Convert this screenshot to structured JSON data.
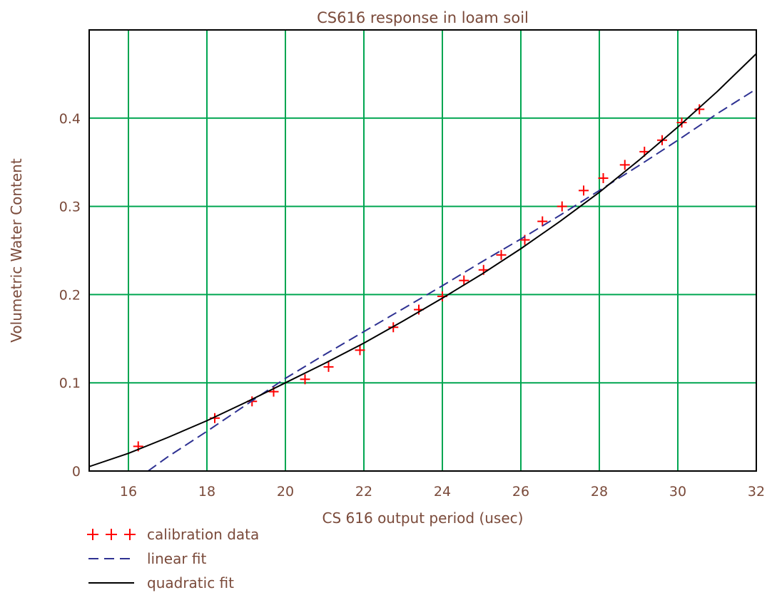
{
  "chart_data": {
    "type": "line",
    "title": "CS616 response in loam soil",
    "xlabel": "CS 616 output period (usec)",
    "ylabel": "Volumetric Water Content",
    "xlim": [
      15,
      32
    ],
    "ylim": [
      0,
      0.5
    ],
    "x_ticks": [
      "16",
      "18",
      "20",
      "22",
      "24",
      "26",
      "28",
      "30",
      "32"
    ],
    "y_ticks": [
      "0",
      "0.1",
      "0.2",
      "0.3",
      "0.4"
    ],
    "grid": true,
    "legend_position": "below-left",
    "colors": {
      "grid": "#00a651",
      "calibration": "#ff0000",
      "linear": "#2e3192",
      "quadratic": "#000000",
      "text": "#7a4a3a"
    },
    "series": [
      {
        "name": "calibration data",
        "style": "markers-plus",
        "x": [
          16.25,
          18.2,
          19.15,
          19.7,
          20.5,
          21.1,
          21.9,
          22.75,
          23.4,
          24.0,
          24.55,
          25.05,
          25.5,
          26.1,
          26.55,
          27.05,
          27.6,
          28.1,
          28.65,
          29.15,
          29.6,
          30.1,
          30.55
        ],
        "y": [
          0.028,
          0.06,
          0.079,
          0.09,
          0.104,
          0.118,
          0.137,
          0.163,
          0.183,
          0.198,
          0.216,
          0.228,
          0.245,
          0.262,
          0.283,
          0.3,
          0.318,
          0.332,
          0.347,
          0.362,
          0.375,
          0.395,
          0.41
        ]
      },
      {
        "name": "linear fit",
        "style": "dashed",
        "x": [
          16.5,
          17,
          18,
          19,
          20,
          21,
          22,
          23,
          24,
          25,
          26,
          27,
          28,
          29,
          30,
          31,
          32
        ],
        "y": [
          0.0,
          0.016,
          0.045,
          0.075,
          0.105,
          0.132,
          0.158,
          0.184,
          0.21,
          0.237,
          0.263,
          0.29,
          0.318,
          0.346,
          0.375,
          0.405,
          0.433
        ]
      },
      {
        "name": "quadratic fit",
        "style": "solid",
        "x": [
          15,
          16,
          17,
          18,
          19,
          20,
          21,
          22,
          23,
          24,
          25,
          26,
          27,
          28,
          29,
          30,
          31,
          32
        ],
        "y": [
          0.005,
          0.02,
          0.038,
          0.057,
          0.078,
          0.1,
          0.122,
          0.145,
          0.17,
          0.196,
          0.223,
          0.252,
          0.283,
          0.316,
          0.352,
          0.39,
          0.43,
          0.473
        ]
      }
    ]
  }
}
